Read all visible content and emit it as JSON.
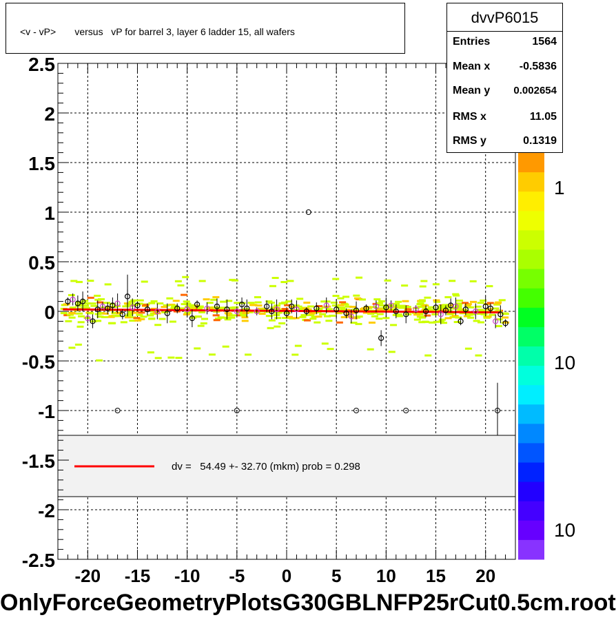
{
  "title": "<v - vP>       versus   vP for barrel 3, layer 6 ladder 15, all wafers",
  "x_axis_title": "OnlyForceGeometryPlotsG30GBLNFP25rCut0.5cm.root",
  "stats": {
    "name": "dvvP6015",
    "rows": [
      {
        "key": "Entries",
        "value": "1564"
      },
      {
        "key": "Mean x",
        "value": "-0.5836"
      },
      {
        "key": "Mean y",
        "value": "0.002654"
      },
      {
        "key": "RMS x",
        "value": "11.05"
      },
      {
        "key": "RMS y",
        "value": "0.1319"
      }
    ]
  },
  "legend": {
    "text": "dv =   54.49 +- 32.70 (mkm) prob = 0.298",
    "line_color": "#ff0000"
  },
  "colors": {
    "fit_line": "#ff0000",
    "marker": "#000000",
    "marker_alt": "#cc44cc",
    "scatter_low": "#ccff00",
    "scatter_mid": "#ffcc00",
    "scatter_high": "#ff6600"
  },
  "chart_data": {
    "type": "scatter",
    "title": "<v - vP>       versus   vP for barrel 3, layer 6 ladder 15, all wafers",
    "xlabel": "OnlyForceGeometryPlotsG30GBLNFP25rCut0.5cm.root",
    "ylabel": "",
    "xlim": [
      -23,
      23
    ],
    "ylim": [
      -2.5,
      2.5
    ],
    "grid": true,
    "x_ticks": [
      "-20",
      "-15",
      "-10",
      "-5",
      "0",
      "5",
      "10",
      "15",
      "20"
    ],
    "y_ticks": [
      "2.5",
      "2",
      "1.5",
      "1",
      "0.5",
      "0",
      "-0.5",
      "-1",
      "-1.5",
      "-2",
      "-2.5"
    ],
    "colorbar_labels": [
      "1",
      "10",
      "10"
    ],
    "fit": {
      "x": [
        -22.5,
        21.5
      ],
      "y": [
        0.02,
        -0.01
      ]
    },
    "profile_points": [
      {
        "x": -22,
        "y": 0.1
      },
      {
        "x": -21.5,
        "y": 0.12
      },
      {
        "x": -21,
        "y": 0.08
      },
      {
        "x": -20.5,
        "y": 0.1
      },
      {
        "x": -20,
        "y": -0.07
      },
      {
        "x": -19.5,
        "y": -0.1
      },
      {
        "x": -19,
        "y": 0.02
      },
      {
        "x": -18.5,
        "y": 0.05
      },
      {
        "x": -18,
        "y": 0.03
      },
      {
        "x": -17.5,
        "y": 0.06
      },
      {
        "x": -17,
        "y": 0.08
      },
      {
        "x": -16.5,
        "y": -0.03
      },
      {
        "x": -16,
        "y": 0.15
      },
      {
        "x": -15.5,
        "y": 0.04
      },
      {
        "x": -15,
        "y": 0.06
      },
      {
        "x": -14,
        "y": 0.02
      },
      {
        "x": -13,
        "y": 0.0
      },
      {
        "x": -12,
        "y": -0.02
      },
      {
        "x": -11,
        "y": 0.03
      },
      {
        "x": -10,
        "y": 0.02
      },
      {
        "x": -9.5,
        "y": -0.07
      },
      {
        "x": -9,
        "y": 0.07
      },
      {
        "x": -8,
        "y": 0.03
      },
      {
        "x": -7,
        "y": 0.05
      },
      {
        "x": -6,
        "y": 0.02
      },
      {
        "x": -5,
        "y": 0.0
      },
      {
        "x": -4.5,
        "y": 0.07
      },
      {
        "x": -4,
        "y": 0.03
      },
      {
        "x": -3,
        "y": 0.0
      },
      {
        "x": -2,
        "y": 0.05
      },
      {
        "x": -1.5,
        "y": 0.0
      },
      {
        "x": -1,
        "y": 0.02
      },
      {
        "x": 0,
        "y": -0.02
      },
      {
        "x": 0.5,
        "y": 0.05
      },
      {
        "x": 1,
        "y": 0.02
      },
      {
        "x": 2,
        "y": 0.0
      },
      {
        "x": 3,
        "y": 0.03
      },
      {
        "x": 4,
        "y": 0.06
      },
      {
        "x": 5,
        "y": 0.02
      },
      {
        "x": 6,
        "y": -0.02
      },
      {
        "x": 6.5,
        "y": -0.05
      },
      {
        "x": 7,
        "y": 0.01
      },
      {
        "x": 8,
        "y": 0.03
      },
      {
        "x": 9,
        "y": 0.05
      },
      {
        "x": 9.5,
        "y": -0.27
      },
      {
        "x": 10,
        "y": 0.04
      },
      {
        "x": 10.5,
        "y": 0.06
      },
      {
        "x": 11,
        "y": 0.0
      },
      {
        "x": 12,
        "y": -0.03
      },
      {
        "x": 13,
        "y": 0.02
      },
      {
        "x": 14,
        "y": 0.0
      },
      {
        "x": 15,
        "y": 0.04
      },
      {
        "x": 15.5,
        "y": -0.03
      },
      {
        "x": 16,
        "y": 0.01
      },
      {
        "x": 16.5,
        "y": 0.06
      },
      {
        "x": 17,
        "y": 0.05
      },
      {
        "x": 17.5,
        "y": -0.1
      },
      {
        "x": 18,
        "y": 0.02
      },
      {
        "x": 19,
        "y": 0.0
      },
      {
        "x": 20,
        "y": 0.05
      },
      {
        "x": 20.5,
        "y": 0.03
      },
      {
        "x": 21,
        "y": -0.1
      },
      {
        "x": 21.5,
        "y": -0.03
      },
      {
        "x": 22,
        "y": -0.12
      }
    ],
    "outliers": [
      {
        "x": 2.2,
        "y": 1.0
      },
      {
        "x": -17,
        "y": -1.0
      },
      {
        "x": -5,
        "y": -1.0
      },
      {
        "x": 7,
        "y": -1.0
      },
      {
        "x": 12,
        "y": -1.0
      },
      {
        "x": 21.2,
        "y": -1.0
      }
    ]
  }
}
